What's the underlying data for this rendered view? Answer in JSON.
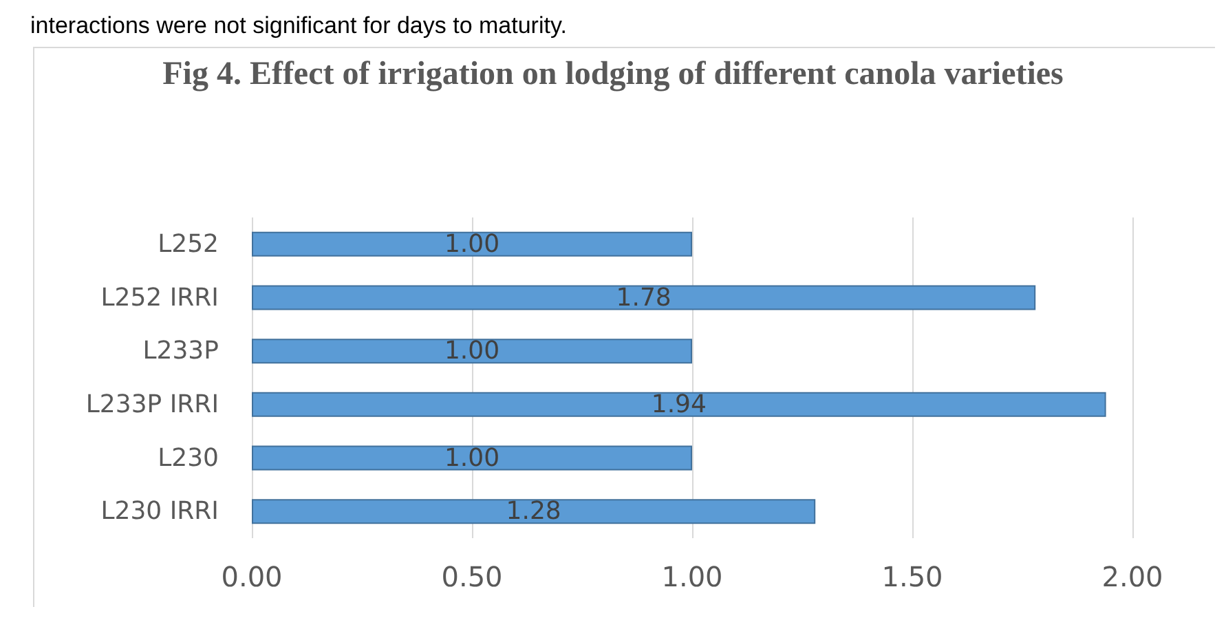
{
  "chart_data": {
    "type": "bar",
    "orientation": "horizontal",
    "title": "Fig 4. Effect of irrigation on lodging of different canola varieties",
    "annotations": [
      "interactions were not significant for days to maturity."
    ],
    "categories": [
      "L252",
      "L252 IRRI",
      "L233P",
      "L233P IRRI",
      "L230",
      "L230 IRRI"
    ],
    "values": [
      1.0,
      1.78,
      1.0,
      1.94,
      1.0,
      1.28
    ],
    "value_labels": [
      "1.00",
      "1.78",
      "1.00",
      "1.94",
      "1.00",
      "1.28"
    ],
    "color": "#5b9bd5",
    "xlim": [
      0,
      2
    ],
    "xticks": [
      {
        "value": 0,
        "label": "0.00"
      },
      {
        "value": 0.5,
        "label": "0.50"
      },
      {
        "value": 1,
        "label": "1.00"
      },
      {
        "value": 1.5,
        "label": "1.50"
      },
      {
        "value": 2,
        "label": "2.00"
      }
    ],
    "grid": "x"
  }
}
